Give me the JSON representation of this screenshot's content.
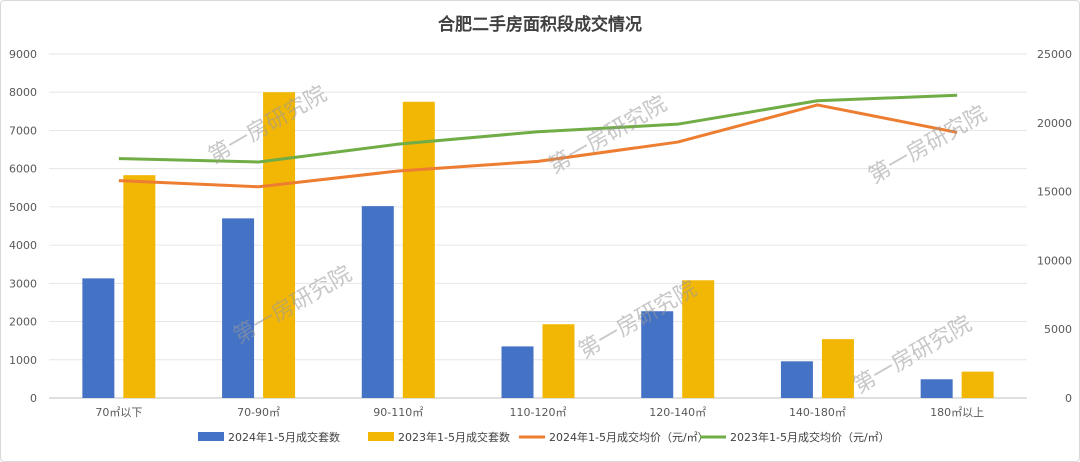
{
  "chart_data": {
    "type": "bar",
    "title": "合肥二手房面积段成交情况",
    "categories": [
      "70㎡以下",
      "70-90㎡",
      "90-110㎡",
      "110-120㎡",
      "120-140㎡",
      "140-180㎡",
      "180㎡以上"
    ],
    "series": [
      {
        "name": "2024年1-5月成交套数",
        "type": "bar",
        "axis": "left",
        "color": "#4472C4",
        "values": [
          3130,
          4700,
          5020,
          1350,
          2270,
          960,
          490
        ]
      },
      {
        "name": "2023年1-5月成交套数",
        "type": "bar",
        "axis": "left",
        "color": "#F2B705",
        "values": [
          5830,
          8000,
          7750,
          1930,
          3080,
          1540,
          690
        ]
      },
      {
        "name": "2024年1-5月成交均价（元/㎡）",
        "type": "line",
        "axis": "right",
        "color": "#ED7D31",
        "values": [
          15800,
          15350,
          16500,
          17200,
          18600,
          21300,
          19300
        ]
      },
      {
        "name": "2023年1-5月成交均价（元/㎡）",
        "type": "line",
        "axis": "right",
        "color": "#70AD47",
        "values": [
          17400,
          17150,
          18450,
          19350,
          19900,
          21600,
          22000
        ]
      }
    ],
    "y_left": {
      "min": 0,
      "max": 9000,
      "ticks": [
        "0",
        "1000",
        "2000",
        "3000",
        "4000",
        "5000",
        "6000",
        "7000",
        "8000",
        "9000"
      ]
    },
    "y_right": {
      "min": 0,
      "max": 25000,
      "ticks": [
        "0",
        "5000",
        "10000",
        "15000",
        "20000",
        "25000"
      ]
    },
    "grid": true,
    "legend_position": "bottom",
    "watermark": "第一房研究院"
  }
}
